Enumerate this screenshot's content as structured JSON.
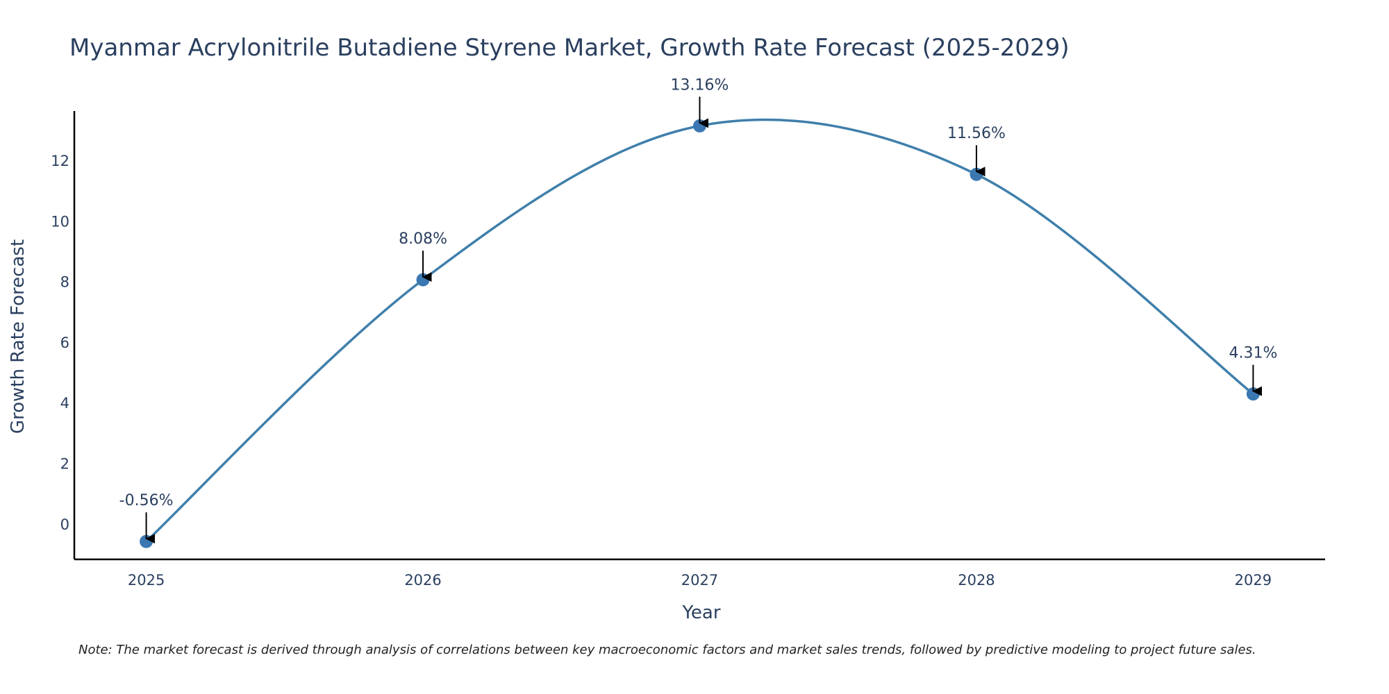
{
  "colors": {
    "line": "#3f7fab",
    "marker": "#3b78b2",
    "axis": "#000000",
    "text": "#2a3f5f",
    "arrow": "#000000"
  },
  "chart_data": {
    "type": "line",
    "title": "Myanmar Acrylonitrile Butadiene Styrene Market, Growth Rate Forecast (2025-2029)",
    "xlabel": "Year",
    "ylabel": "Growth Rate Forecast",
    "categories": [
      "2025",
      "2026",
      "2027",
      "2028",
      "2029"
    ],
    "x": [
      2025,
      2026,
      2027,
      2028,
      2029
    ],
    "values": [
      -0.56,
      8.08,
      13.16,
      11.56,
      4.31
    ],
    "data_labels": [
      "-0.56%",
      "8.08%",
      "13.16%",
      "11.56%",
      "4.31%"
    ],
    "xlim": [
      2024.74,
      2029.26
    ],
    "ylim": [
      -1.15,
      13.65
    ],
    "yticks": [
      0,
      2,
      4,
      6,
      8,
      10,
      12
    ],
    "ytick_labels": [
      "0",
      "2",
      "4",
      "6",
      "8",
      "10",
      "12"
    ],
    "grid": false,
    "legend": "none",
    "smoothing": "spline",
    "markers": true,
    "annotations": "arrow above each point"
  },
  "note": "Note: The market forecast is derived through analysis of correlations between key macroeconomic factors and market sales trends, followed by predictive modeling to project future sales."
}
